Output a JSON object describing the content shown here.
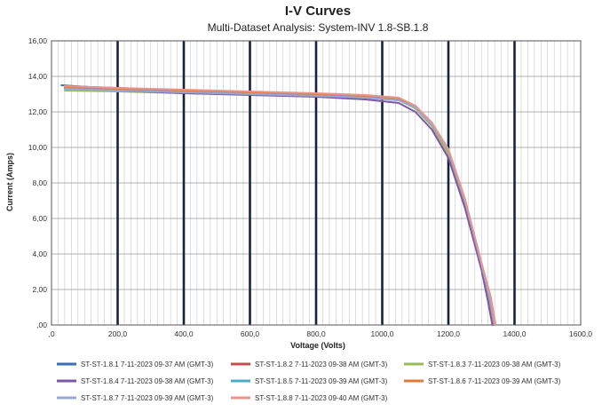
{
  "chart_data": {
    "type": "line",
    "title": "I-V Curves",
    "subtitle": "Multi-Dataset Analysis: System-INV 1.8-SB.1.8",
    "xlabel": "Voltage (Volts)",
    "ylabel": "Current (Amps)",
    "xlim": [
      0,
      1600
    ],
    "ylim": [
      0,
      16
    ],
    "x_major_ticks": [
      0,
      200,
      400,
      600,
      800,
      1000,
      1200,
      1400,
      1600
    ],
    "x_tick_labels": [
      ",0",
      "200,0",
      "400,0",
      "600,0",
      "800,0",
      "1000,0",
      "1200,0",
      "1400,0",
      "1600,0"
    ],
    "y_ticks": [
      0,
      2,
      4,
      6,
      8,
      10,
      12,
      14,
      16
    ],
    "y_tick_labels": [
      ",00",
      "2,00",
      "4,00",
      "6,00",
      "8,00",
      "10,00",
      "12,00",
      "14,00",
      "16,00"
    ],
    "grid": true,
    "legend_position": "bottom",
    "series": [
      {
        "name": "ST-ST-1.8.1 7-11-2023 09-37 AM (GMT-3)",
        "color": "#3a6fb5",
        "x": [
          30,
          200,
          400,
          600,
          800,
          950,
          1050,
          1100,
          1150,
          1200,
          1250,
          1300,
          1320,
          1335
        ],
        "y": [
          13.5,
          13.3,
          13.2,
          13.1,
          13.0,
          12.9,
          12.7,
          12.2,
          11.2,
          9.6,
          6.8,
          3.3,
          1.5,
          0.0
        ]
      },
      {
        "name": "ST-ST-1.8.2 7-11-2023 09-38 AM (GMT-3)",
        "color": "#c0504d",
        "x": [
          40,
          200,
          400,
          600,
          800,
          950,
          1050,
          1100,
          1150,
          1200,
          1250,
          1300,
          1325,
          1340
        ],
        "y": [
          13.45,
          13.35,
          13.2,
          13.1,
          13.0,
          12.9,
          12.75,
          12.3,
          11.3,
          9.8,
          7.0,
          3.4,
          1.5,
          0.0
        ]
      },
      {
        "name": "ST-ST-1.8.3 7-11-2023 09-38 AM (GMT-3)",
        "color": "#9bbb59",
        "x": [
          40,
          200,
          400,
          600,
          800,
          950,
          1050,
          1100,
          1150,
          1200,
          1250,
          1300,
          1320,
          1335
        ],
        "y": [
          13.2,
          13.15,
          13.05,
          13.0,
          12.9,
          12.8,
          12.65,
          12.2,
          11.2,
          9.6,
          6.8,
          3.2,
          1.4,
          0.0
        ]
      },
      {
        "name": "ST-ST-1.8.4 7-11-2023 09-38 AM (GMT-3)",
        "color": "#7e57a8",
        "x": [
          40,
          200,
          400,
          600,
          800,
          950,
          1050,
          1100,
          1150,
          1200,
          1250,
          1300,
          1320,
          1333
        ],
        "y": [
          13.35,
          13.2,
          13.05,
          12.95,
          12.85,
          12.7,
          12.5,
          12.0,
          11.0,
          9.4,
          6.6,
          3.1,
          1.3,
          0.0
        ]
      },
      {
        "name": "ST-ST-1.8.5 7-11-2023 09-39 AM (GMT-3)",
        "color": "#4bacc6",
        "x": [
          40,
          200,
          400,
          600,
          800,
          950,
          1050,
          1100,
          1150,
          1200,
          1250,
          1300,
          1325,
          1338
        ],
        "y": [
          13.4,
          13.3,
          13.15,
          13.05,
          12.95,
          12.85,
          12.7,
          12.3,
          11.35,
          9.9,
          7.1,
          3.5,
          1.6,
          0.0
        ]
      },
      {
        "name": "ST-ST-1.8.6 7-11-2023 09-39 AM (GMT-3)",
        "color": "#e07b39",
        "x": [
          40,
          200,
          400,
          600,
          800,
          950,
          1050,
          1100,
          1150,
          1200,
          1250,
          1300,
          1325,
          1338
        ],
        "y": [
          13.4,
          13.3,
          13.2,
          13.1,
          13.0,
          12.9,
          12.75,
          12.3,
          11.3,
          9.8,
          7.0,
          3.4,
          1.5,
          0.0
        ]
      },
      {
        "name": "ST-ST-1.8.7 7-11-2023 09-39 AM (GMT-3)",
        "color": "#95a8d6",
        "x": [
          40,
          200,
          400,
          600,
          800,
          950,
          1050,
          1100,
          1150,
          1200,
          1250,
          1300,
          1325,
          1340
        ],
        "y": [
          13.3,
          13.2,
          13.1,
          13.0,
          12.9,
          12.8,
          12.65,
          12.25,
          11.3,
          9.8,
          7.0,
          3.4,
          1.5,
          0.0
        ]
      },
      {
        "name": "ST-ST-1.8.8 7-11-2023 09-40 AM (GMT-3)",
        "color": "#e8958f",
        "x": [
          40,
          200,
          400,
          600,
          800,
          950,
          1050,
          1100,
          1150,
          1200,
          1250,
          1300,
          1328,
          1343
        ],
        "y": [
          13.45,
          13.35,
          13.25,
          13.15,
          13.05,
          12.95,
          12.8,
          12.35,
          11.4,
          9.9,
          7.1,
          3.5,
          1.6,
          0.0
        ]
      }
    ]
  }
}
